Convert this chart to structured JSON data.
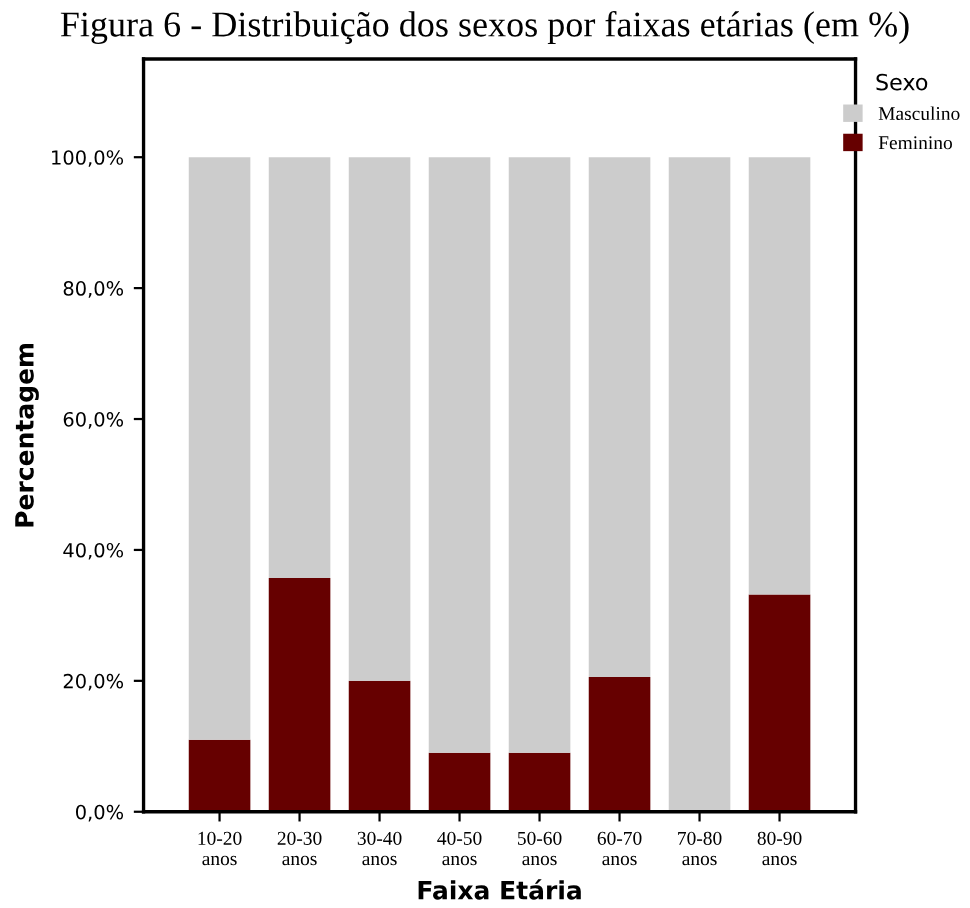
{
  "chart_data": {
    "type": "bar",
    "stacked": true,
    "title": "Figura 6 - Distribuição dos sexos por faixas etárias (em %)",
    "xlabel": "Faixa Etária",
    "ylabel": "Percentagem",
    "legend_title": "Sexo",
    "legend": "top right",
    "categories": [
      "10-20\nanos",
      "20-30\nanos",
      "30-40\nanos",
      "40-50\nanos",
      "50-60\nanos",
      "60-70\nanos",
      "70-80\nanos",
      "80-90\nanos"
    ],
    "series": [
      {
        "name": "Feminino",
        "color": "#660000",
        "values": [
          11.0,
          35.7,
          20.0,
          9.0,
          9.0,
          20.6,
          0,
          33.2
        ]
      },
      {
        "name": "Masculino",
        "color": "#cccccc",
        "values": [
          89.0,
          64.3,
          80.0,
          91.0,
          91.0,
          79.4,
          100,
          66.8
        ]
      }
    ],
    "ylim": [
      0,
      115
    ],
    "yticks": [
      {
        "value": 0,
        "label": "0,0%"
      },
      {
        "value": 20,
        "label": "20,0%"
      },
      {
        "value": 40,
        "label": "40,0%"
      },
      {
        "value": 60,
        "label": "60,0%"
      },
      {
        "value": 80,
        "label": "80,0%"
      },
      {
        "value": 100,
        "label": "100,0%"
      }
    ],
    "grid": false
  }
}
